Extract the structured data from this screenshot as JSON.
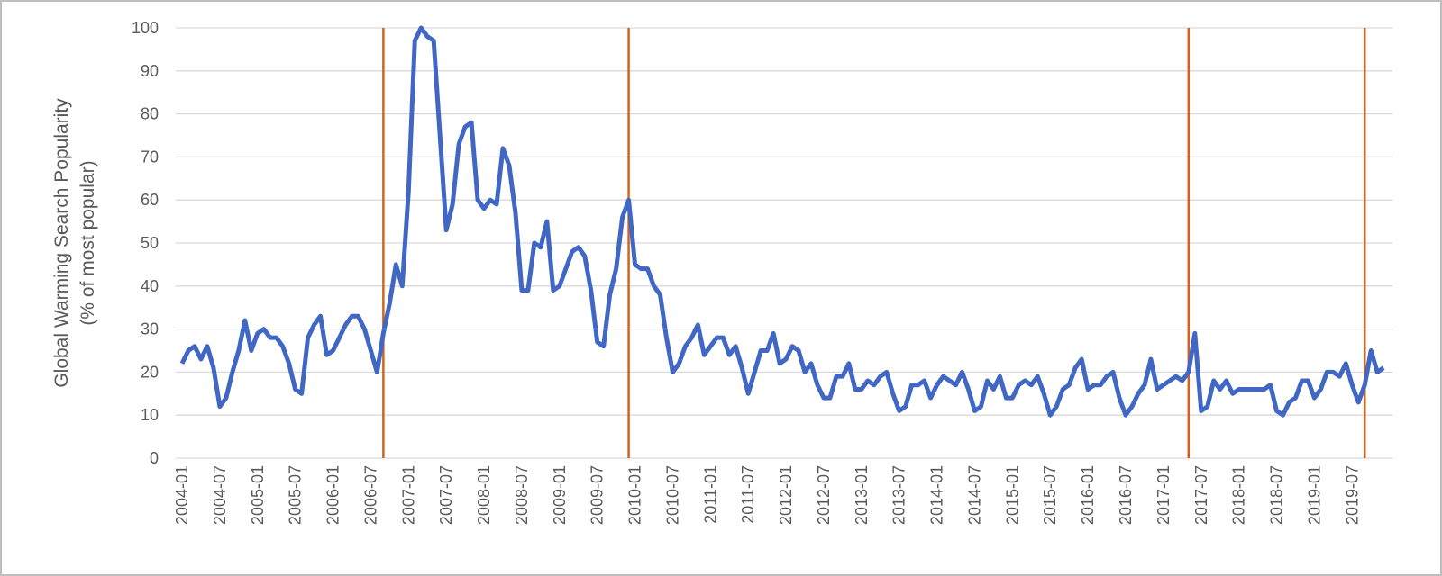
{
  "chart_data": {
    "type": "line",
    "ylabel": [
      "Global Warming Search Popularity",
      "(% of most popular)"
    ],
    "categories": [
      "2004-01",
      null,
      null,
      null,
      null,
      null,
      "2004-07",
      null,
      null,
      null,
      null,
      null,
      "2005-01",
      null,
      null,
      null,
      null,
      null,
      "2005-07",
      null,
      null,
      null,
      null,
      null,
      "2006-01",
      null,
      null,
      null,
      null,
      null,
      "2006-07",
      null,
      null,
      null,
      null,
      null,
      "2007-01",
      null,
      null,
      null,
      null,
      null,
      "2007-07",
      null,
      null,
      null,
      null,
      null,
      "2008-01",
      null,
      null,
      null,
      null,
      null,
      "2008-07",
      null,
      null,
      null,
      null,
      null,
      "2009-01",
      null,
      null,
      null,
      null,
      null,
      "2009-07",
      null,
      null,
      null,
      null,
      null,
      "2010-01",
      null,
      null,
      null,
      null,
      null,
      "2010-07",
      null,
      null,
      null,
      null,
      null,
      "2011-01",
      null,
      null,
      null,
      null,
      null,
      "2011-07",
      null,
      null,
      null,
      null,
      null,
      "2012-01",
      null,
      null,
      null,
      null,
      null,
      "2012-07",
      null,
      null,
      null,
      null,
      null,
      "2013-01",
      null,
      null,
      null,
      null,
      null,
      "2013-07",
      null,
      null,
      null,
      null,
      null,
      "2014-01",
      null,
      null,
      null,
      null,
      null,
      "2014-07",
      null,
      null,
      null,
      null,
      null,
      "2015-01",
      null,
      null,
      null,
      null,
      null,
      "2015-07",
      null,
      null,
      null,
      null,
      null,
      "2016-01",
      null,
      null,
      null,
      null,
      null,
      "2016-07",
      null,
      null,
      null,
      null,
      null,
      "2017-01",
      null,
      null,
      null,
      null,
      null,
      "2017-07",
      null,
      null,
      null,
      null,
      null,
      "2018-01",
      null,
      null,
      null,
      null,
      null,
      "2018-07",
      null,
      null,
      null,
      null,
      null,
      "2019-01",
      null,
      null,
      null,
      null,
      null,
      "2019-07",
      null,
      null,
      null,
      null,
      null
    ],
    "values": [
      22,
      25,
      26,
      23,
      26,
      21,
      12,
      14,
      20,
      25,
      32,
      25,
      29,
      30,
      28,
      28,
      26,
      22,
      16,
      15,
      28,
      31,
      33,
      24,
      25,
      28,
      31,
      33,
      33,
      30,
      25,
      20,
      29,
      36,
      45,
      40,
      62,
      97,
      100,
      98,
      97,
      75,
      53,
      59,
      73,
      77,
      78,
      60,
      58,
      60,
      59,
      72,
      68,
      57,
      39,
      39,
      50,
      49,
      55,
      39,
      40,
      44,
      48,
      49,
      47,
      39,
      27,
      26,
      38,
      44,
      56,
      60,
      45,
      44,
      44,
      40,
      38,
      28,
      20,
      22,
      26,
      28,
      31,
      24,
      26,
      28,
      28,
      24,
      26,
      21,
      15,
      20,
      25,
      25,
      29,
      22,
      23,
      26,
      25,
      20,
      22,
      17,
      14,
      14,
      19,
      19,
      22,
      16,
      16,
      18,
      17,
      19,
      20,
      15,
      11,
      12,
      17,
      17,
      18,
      14,
      17,
      19,
      18,
      17,
      20,
      16,
      11,
      12,
      18,
      16,
      19,
      14,
      14,
      17,
      18,
      17,
      19,
      15,
      10,
      12,
      16,
      17,
      21,
      23,
      16,
      17,
      17,
      19,
      20,
      14,
      10,
      12,
      15,
      17,
      23,
      16,
      17,
      18,
      19,
      18,
      20,
      29,
      11,
      12,
      18,
      16,
      18,
      15,
      16,
      16,
      16,
      16,
      16,
      17,
      11,
      10,
      13,
      14,
      18,
      18,
      14,
      16,
      20,
      20,
      19,
      22,
      17,
      13,
      17,
      25,
      20,
      21
    ],
    "color": "#4167c4",
    "vlines": [
      {
        "x": "2006-09",
        "color": "#d0641e"
      },
      {
        "x": "2009-12",
        "color": "#d0641e"
      },
      {
        "x": "2017-05",
        "color": "#d0641e"
      },
      {
        "x": "2019-09",
        "color": "#d0641e"
      }
    ],
    "ylim": [
      0,
      100
    ],
    "yticks": [
      0,
      10,
      20,
      30,
      40,
      50,
      60,
      70,
      80,
      90,
      100
    ],
    "grid": true
  }
}
